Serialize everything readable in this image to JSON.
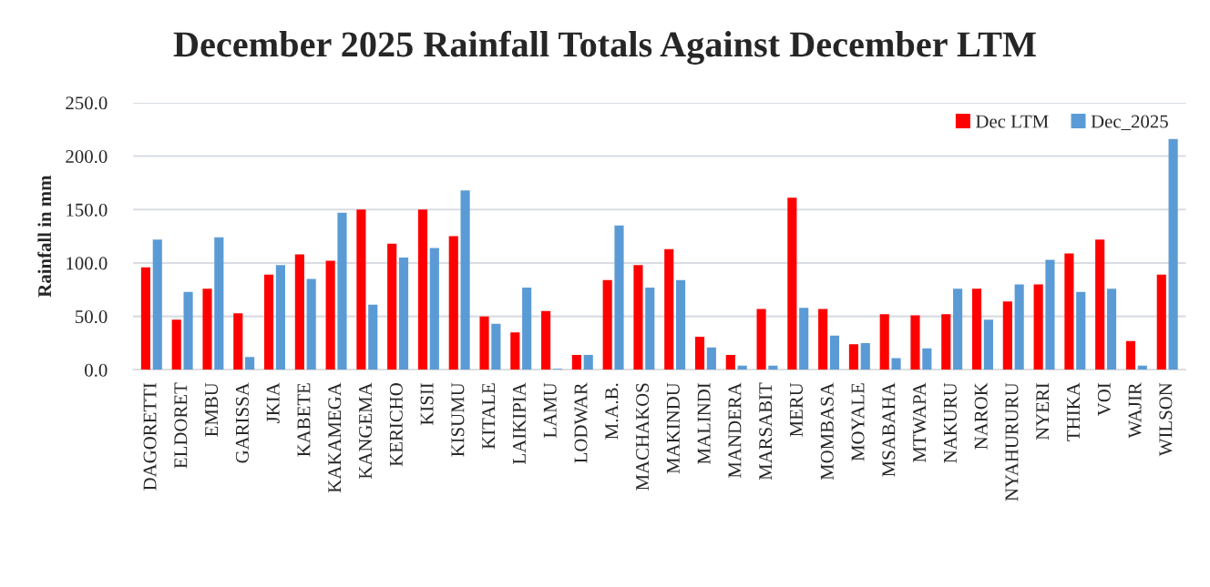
{
  "chart_data": {
    "type": "bar",
    "title": "December 2025 Rainfall Totals Against December LTM",
    "ylabel": "Rainfall in mm",
    "categories": [
      "DAGORETTI",
      "ELDORET",
      "EMBU",
      "GARISSA",
      "JKIA",
      "KABETE",
      "KAKAMEGA",
      "KANGEMA",
      "KERICHO",
      "KISII",
      "KISUMU",
      "KITALE",
      "LAIKIPIA",
      "LAMU",
      "LODWAR",
      "M.A.B.",
      "MACHAKOS",
      "MAKINDU",
      "MALINDI",
      "MANDERA",
      "MARSABIT",
      "MERU",
      "MOMBASA",
      "MOYALE",
      "MSABAHA",
      "MTWAPA",
      "NAKURU",
      "NAROK",
      "NYAHURURU",
      "NYERI",
      "THIKA",
      "VOI",
      "WAJIR",
      "WILSON"
    ],
    "series": [
      {
        "name": "Dec LTM",
        "color": "#ff0000",
        "values": [
          96,
          47,
          76,
          53,
          89,
          108,
          102,
          150,
          118,
          150,
          125,
          50,
          35,
          55,
          14,
          84,
          98,
          113,
          31,
          14,
          57,
          161,
          57,
          24,
          52,
          51,
          52,
          76,
          64,
          80,
          109,
          122,
          27,
          89
        ]
      },
      {
        "name": "Dec_2025",
        "color": "#5b9bd5",
        "values": [
          122,
          73,
          124,
          12,
          98,
          85,
          147,
          61,
          105,
          114,
          168,
          43,
          77,
          1,
          14,
          135,
          77,
          84,
          21,
          4,
          4,
          58,
          32,
          25,
          11,
          20,
          76,
          47,
          80,
          103,
          73,
          76,
          4,
          216
        ]
      }
    ],
    "ylim": [
      0,
      250
    ],
    "yticks": [
      {
        "value": 0,
        "label": "0.0"
      },
      {
        "value": 50,
        "label": "50.0"
      },
      {
        "value": 100,
        "label": "100.0"
      },
      {
        "value": 150,
        "label": "150.0"
      },
      {
        "value": 200,
        "label": "200.0"
      },
      {
        "value": 250,
        "label": "250.0"
      }
    ],
    "grid": "y",
    "legend": "top right"
  }
}
